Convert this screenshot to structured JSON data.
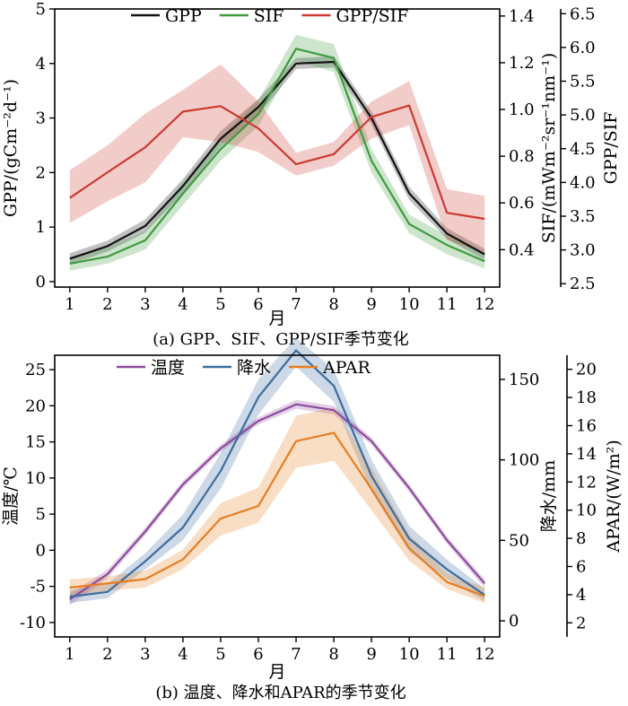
{
  "chart_data": [
    {
      "type": "line",
      "caption": "(a) GPP、SIF、GPP/SIF季节变化",
      "xlabel": "月",
      "x": [
        1,
        2,
        3,
        4,
        5,
        6,
        7,
        8,
        9,
        10,
        11,
        12
      ],
      "axes": {
        "left": {
          "label": "GPP/(gCm⁻²d⁻¹)",
          "ylim": [
            -0.1,
            5
          ],
          "ticks": [
            0,
            1,
            2,
            3,
            4,
            5
          ]
        },
        "right1": {
          "label": "SIF/(mWm⁻²sr⁻¹nm⁻¹)",
          "ylim": [
            0.24,
            1.43
          ],
          "ticks": [
            "0.4",
            "0.6",
            "0.8",
            "1.0",
            "1.2",
            "1.4"
          ]
        },
        "right2": {
          "label": "GPP/SIF",
          "ylim": [
            2.45,
            6.57
          ],
          "ticks": [
            "2.5",
            "3.0",
            "3.5",
            "4.0",
            "4.5",
            "5.0",
            "5.5",
            "6.0",
            "6.5"
          ]
        }
      },
      "series": [
        {
          "name": "GPP",
          "axis": "left",
          "color": "#111111",
          "values": [
            0.42,
            0.65,
            1.02,
            1.75,
            2.62,
            3.2,
            4.0,
            4.03,
            3.0,
            1.62,
            0.88,
            0.5
          ],
          "lower": [
            0.32,
            0.55,
            0.9,
            1.62,
            2.48,
            3.05,
            3.9,
            3.93,
            2.88,
            1.5,
            0.78,
            0.4
          ],
          "upper": [
            0.52,
            0.75,
            1.14,
            1.88,
            2.76,
            3.35,
            4.1,
            4.13,
            3.12,
            1.74,
            0.98,
            0.6
          ]
        },
        {
          "name": "SIF",
          "axis": "right1",
          "color": "#3f9a3f",
          "values": [
            0.34,
            0.37,
            0.44,
            0.64,
            0.83,
            0.98,
            1.26,
            1.22,
            0.78,
            0.51,
            0.42,
            0.35
          ],
          "lower": [
            0.31,
            0.34,
            0.4,
            0.59,
            0.78,
            0.93,
            1.21,
            1.16,
            0.73,
            0.47,
            0.38,
            0.32
          ],
          "upper": [
            0.37,
            0.41,
            0.48,
            0.69,
            0.88,
            1.04,
            1.32,
            1.28,
            0.83,
            0.55,
            0.46,
            0.38
          ]
        },
        {
          "name": "GPP/SIF",
          "axis": "right2",
          "color": "#cc3a30",
          "values": [
            3.77,
            4.15,
            4.52,
            5.05,
            5.13,
            4.8,
            4.27,
            4.42,
            4.97,
            5.14,
            3.55,
            3.46
          ],
          "lower": [
            3.4,
            3.72,
            4.0,
            4.67,
            4.6,
            4.45,
            4.1,
            4.25,
            4.65,
            4.85,
            3.15,
            2.95
          ],
          "upper": [
            4.18,
            4.55,
            5.02,
            5.37,
            5.75,
            5.2,
            4.44,
            4.6,
            5.2,
            5.5,
            3.9,
            3.8
          ]
        }
      ]
    },
    {
      "type": "line",
      "caption": "(b) 温度、降水和APAR的季节变化",
      "xlabel": "月",
      "x": [
        1,
        2,
        3,
        4,
        5,
        6,
        7,
        8,
        9,
        10,
        11,
        12
      ],
      "axes": {
        "left": {
          "label": "温度/℃",
          "ylim": [
            -12,
            27
          ],
          "ticks": [
            -10,
            -5,
            0,
            5,
            10,
            15,
            20,
            25
          ]
        },
        "right1": {
          "label": "降水/mm",
          "ylim": [
            -10,
            165
          ],
          "ticks": [
            0,
            50,
            100,
            150
          ]
        },
        "right2": {
          "label": "APAR/(W/m²)",
          "ylim": [
            1,
            21
          ],
          "ticks": [
            2,
            4,
            6,
            8,
            10,
            12,
            14,
            16,
            18,
            20
          ]
        }
      },
      "series": [
        {
          "name": "温度",
          "axis": "left",
          "color": "#8e4a9e",
          "values": [
            -6.8,
            -3.3,
            2.6,
            9.1,
            14.1,
            17.9,
            20.2,
            19.4,
            15.1,
            8.6,
            1.4,
            -4.6
          ],
          "lower": [
            -7.6,
            -3.9,
            2.1,
            8.6,
            13.6,
            17.4,
            19.6,
            18.8,
            14.6,
            8.1,
            0.9,
            -5.2
          ],
          "upper": [
            -6.0,
            -2.7,
            3.1,
            9.6,
            14.6,
            18.4,
            20.8,
            20.0,
            15.6,
            9.1,
            1.9,
            -4.0
          ]
        },
        {
          "name": "降水",
          "axis": "right1",
          "color": "#3c6da0",
          "values": [
            15,
            18,
            37,
            58,
            93,
            139,
            168,
            146,
            90,
            51,
            32,
            16
          ],
          "lower": [
            11,
            14,
            32,
            50,
            82,
            128,
            158,
            136,
            80,
            43,
            26,
            12
          ],
          "upper": [
            19,
            23,
            42,
            66,
            104,
            150,
            176,
            156,
            100,
            59,
            38,
            20
          ]
        },
        {
          "name": "APAR",
          "axis": "right2",
          "color": "#e67e22",
          "values": [
            4.5,
            4.8,
            5.1,
            6.5,
            9.4,
            10.3,
            14.9,
            15.5,
            11.5,
            7.3,
            4.9,
            3.9
          ],
          "lower": [
            3.9,
            4.3,
            4.5,
            5.8,
            8.2,
            9.1,
            13.0,
            13.5,
            10.0,
            6.4,
            4.4,
            3.4
          ],
          "upper": [
            5.1,
            5.3,
            5.7,
            7.2,
            10.5,
            11.6,
            16.7,
            17.3,
            13.0,
            8.3,
            5.5,
            4.5
          ]
        }
      ]
    }
  ]
}
